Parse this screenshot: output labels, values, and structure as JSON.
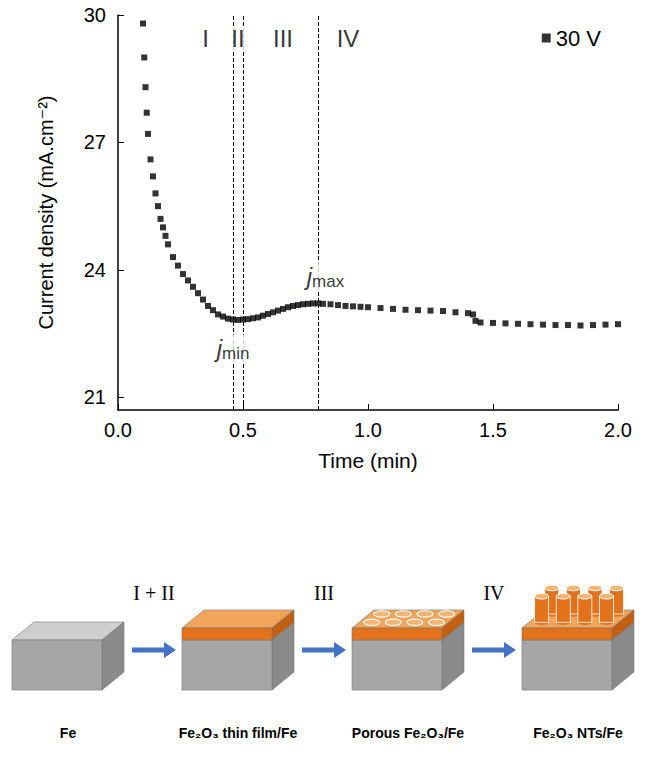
{
  "chart_data": {
    "type": "scatter",
    "x_label": "Time (min)",
    "y_label": "Current density (mA.cm⁻²)",
    "xlim": [
      0,
      2
    ],
    "xticks": [
      {
        "value": 0,
        "label": "0.0"
      },
      {
        "value": 0.5,
        "label": "0.5"
      },
      {
        "value": 1,
        "label": "1.0"
      },
      {
        "value": 1.5,
        "label": "1.5"
      },
      {
        "value": 2,
        "label": "2.0"
      }
    ],
    "ylim": [
      20.7,
      30
    ],
    "yticks": [
      21,
      24,
      27,
      30
    ],
    "grid": false,
    "legend": "upper right",
    "x": [
      0.1,
      0.105,
      0.11,
      0.115,
      0.12,
      0.13,
      0.14,
      0.15,
      0.16,
      0.17,
      0.18,
      0.19,
      0.2,
      0.22,
      0.24,
      0.26,
      0.28,
      0.3,
      0.32,
      0.34,
      0.36,
      0.38,
      0.4,
      0.42,
      0.44,
      0.46,
      0.48,
      0.5,
      0.52,
      0.54,
      0.56,
      0.58,
      0.6,
      0.62,
      0.64,
      0.66,
      0.68,
      0.7,
      0.72,
      0.74,
      0.76,
      0.78,
      0.8,
      0.82,
      0.85,
      0.88,
      0.91,
      0.94,
      0.97,
      1.0,
      1.05,
      1.1,
      1.15,
      1.2,
      1.25,
      1.3,
      1.35,
      1.4,
      1.42,
      1.43,
      1.45,
      1.5,
      1.55,
      1.6,
      1.65,
      1.7,
      1.75,
      1.8,
      1.85,
      1.9,
      1.95,
      2.0
    ],
    "series": [
      {
        "name": "30 V",
        "color": "#000000",
        "marker": "square",
        "values": [
          29.8,
          29.0,
          28.3,
          27.7,
          27.2,
          26.6,
          26.2,
          25.8,
          25.5,
          25.2,
          25.0,
          24.8,
          24.6,
          24.3,
          24.1,
          23.9,
          23.75,
          23.6,
          23.45,
          23.3,
          23.15,
          23.05,
          22.95,
          22.9,
          22.85,
          22.83,
          22.82,
          22.83,
          22.84,
          22.86,
          22.88,
          22.92,
          22.96,
          23.0,
          23.04,
          23.08,
          23.12,
          23.15,
          23.17,
          23.19,
          23.2,
          23.21,
          23.21,
          23.2,
          23.19,
          23.17,
          23.15,
          23.14,
          23.13,
          23.12,
          23.1,
          23.08,
          23.06,
          23.05,
          23.04,
          23.03,
          23.0,
          22.98,
          22.95,
          22.8,
          22.76,
          22.75,
          22.74,
          22.73,
          22.72,
          22.71,
          22.7,
          22.7,
          22.69,
          22.7,
          22.71,
          22.72
        ]
      }
    ],
    "vlines": [
      0.46,
      0.5,
      0.8
    ],
    "regions": [
      {
        "label": "I",
        "x": 0.35,
        "y": 29.45
      },
      {
        "label": "II",
        "x": 0.48,
        "y": 29.45
      },
      {
        "label": "III",
        "x": 0.66,
        "y": 29.45
      },
      {
        "label": "IV",
        "x": 0.92,
        "y": 29.45
      }
    ],
    "annotations": [
      {
        "text": "j",
        "subscript": "min",
        "x": 0.46,
        "y": 22.15
      },
      {
        "text": "j",
        "subscript": "max",
        "x": 0.83,
        "y": 23.85
      }
    ]
  },
  "diagram": {
    "steps": [
      "I + II",
      "III",
      "IV"
    ],
    "stages": [
      "Fe",
      "Fe₂O₃ thin film/Fe",
      "Porous Fe₂O₃/Fe",
      "Fe₂O₃ NTs/Fe"
    ]
  }
}
